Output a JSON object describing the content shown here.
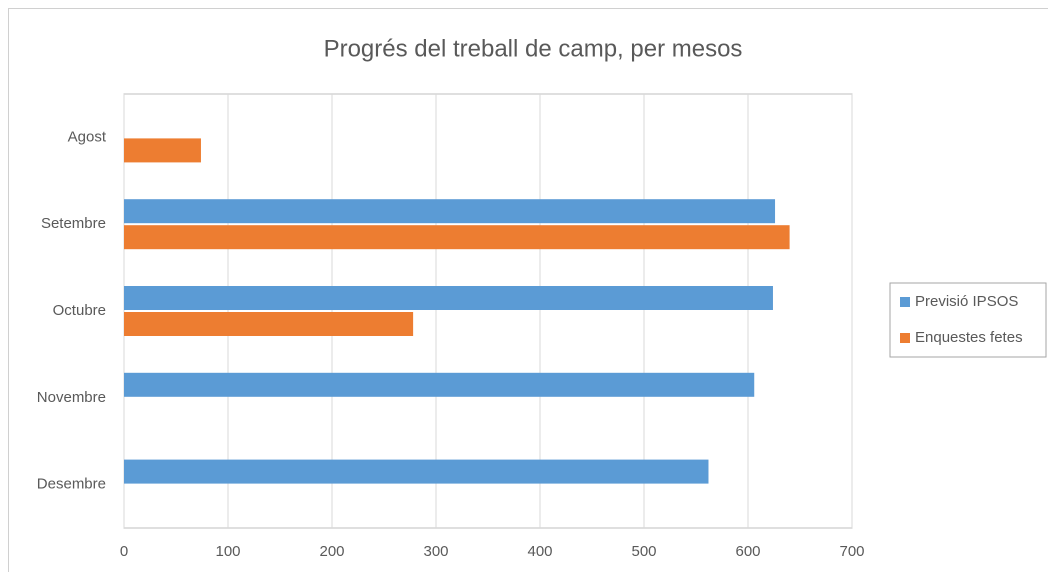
{
  "chart_data": {
    "type": "bar",
    "orientation": "horizontal",
    "title": "Progrés del treball de camp, per mesos",
    "categories": [
      "Agost",
      "Setembre",
      "Octubre",
      "Novembre",
      "Desembre"
    ],
    "series": [
      {
        "name": "Previsió IPSOS",
        "color": "#5b9bd5",
        "values": [
          null,
          626,
          624,
          606,
          562
        ]
      },
      {
        "name": "Enquestes fetes",
        "color": "#ed7d31",
        "values": [
          74,
          640,
          278,
          null,
          null
        ]
      }
    ],
    "xlim": [
      0,
      700
    ],
    "xticks": [
      0,
      100,
      200,
      300,
      400,
      500,
      600,
      700
    ],
    "grid": true,
    "legend": "right"
  }
}
